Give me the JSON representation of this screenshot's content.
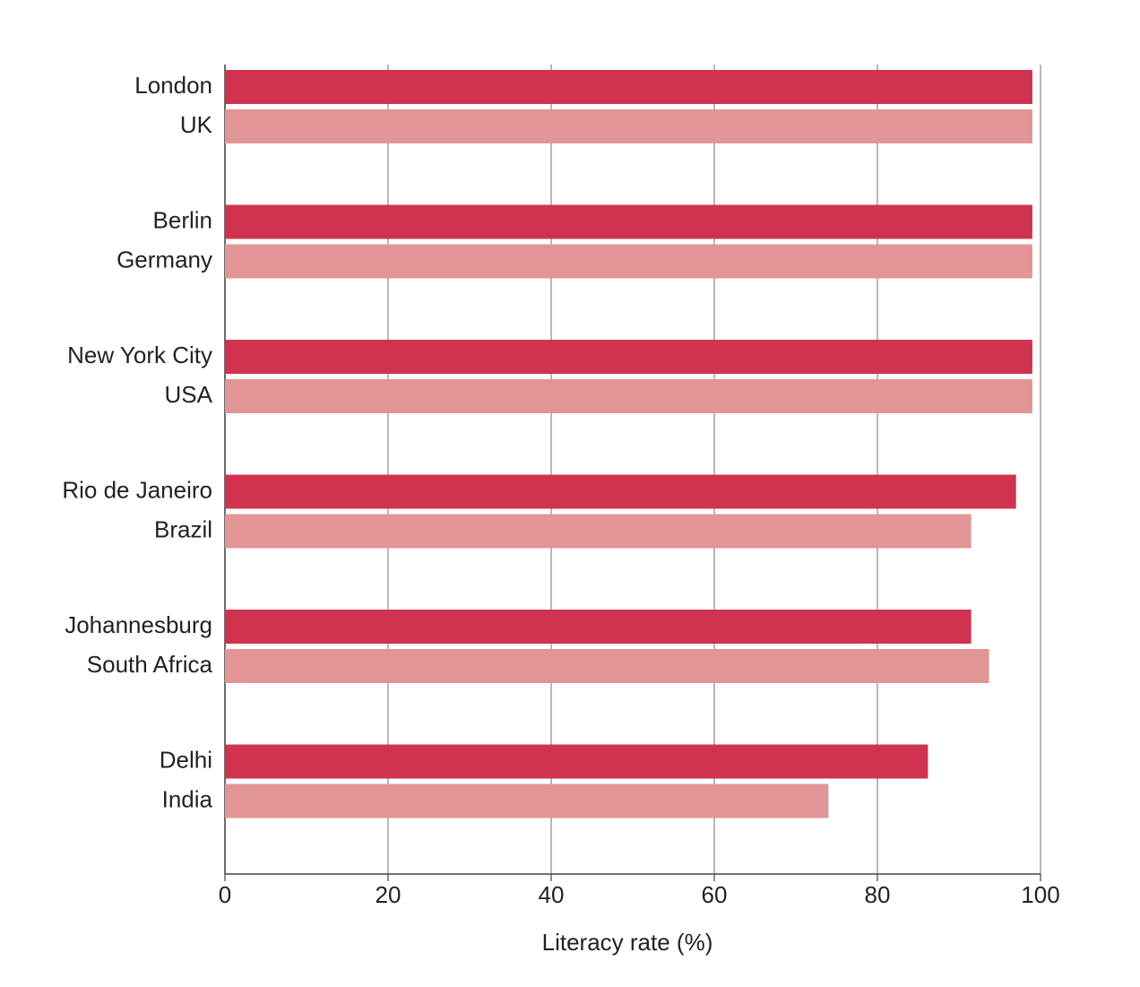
{
  "chart_data": {
    "type": "bar",
    "orientation": "horizontal",
    "x_label": "Literacy rate (%)",
    "xlim": [
      0,
      100
    ],
    "xticks": [
      0,
      20,
      40,
      60,
      80,
      100
    ],
    "grid": true,
    "series": [
      {
        "color": "#d0334f",
        "labels": [
          "London",
          "Berlin",
          "New York City",
          "Rio de Janeiro",
          "Johannesburg",
          "Delhi"
        ],
        "values": [
          99,
          99,
          99,
          97,
          91.5,
          86.2
        ]
      },
      {
        "color": "#e29596",
        "labels": [
          "UK",
          "Germany",
          "USA",
          "Brazil",
          "South Africa",
          "India"
        ],
        "values": [
          99,
          99,
          99,
          91.5,
          93.7,
          74
        ]
      }
    ]
  }
}
